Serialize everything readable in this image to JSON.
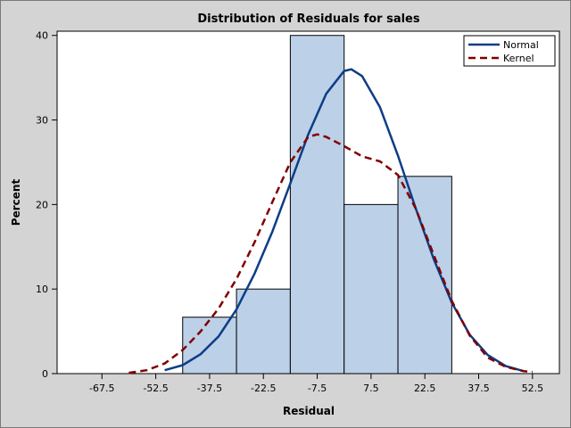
{
  "chart_data": {
    "type": "bar",
    "title": "Distribution of Residuals for sales",
    "xlabel": "Residual",
    "ylabel": "Percent",
    "xlim": [
      -80,
      60
    ],
    "ylim": [
      0,
      40.5
    ],
    "x_ticks": [
      "-67.5",
      "-52.5",
      "-37.5",
      "-22.5",
      "-7.5",
      "7.5",
      "22.5",
      "37.5",
      "52.5"
    ],
    "x_tick_values": [
      -67.5,
      -52.5,
      -37.5,
      -22.5,
      -7.5,
      7.5,
      22.5,
      37.5,
      52.5
    ],
    "y_ticks": [
      "0",
      "10",
      "20",
      "30",
      "40"
    ],
    "y_tick_values": [
      0,
      10,
      20,
      30,
      40
    ],
    "bins": [
      {
        "start": -45,
        "end": -30,
        "value": 6.67
      },
      {
        "start": -30,
        "end": -15,
        "value": 10
      },
      {
        "start": -15,
        "end": 0,
        "value": 40
      },
      {
        "start": 0,
        "end": 15,
        "value": 20
      },
      {
        "start": 15,
        "end": 30,
        "value": 23.33
      }
    ],
    "series": [
      {
        "name": "Normal",
        "style": "solid",
        "color": "#0d3d86",
        "x": [
          -50,
          -45,
          -40,
          -35,
          -30,
          -25,
          -20,
          -15,
          -10,
          -5,
          0,
          2,
          5,
          10,
          15,
          20,
          25,
          30,
          35,
          40,
          45,
          50
        ],
        "y": [
          0.4,
          1.0,
          2.3,
          4.4,
          7.6,
          11.8,
          16.8,
          22.5,
          28.3,
          33.1,
          35.8,
          36.0,
          35.2,
          31.5,
          25.8,
          19.5,
          13.5,
          8.4,
          4.6,
          2.2,
          0.9,
          0.3
        ]
      },
      {
        "name": "Kernel",
        "style": "dashed",
        "color": "#800000",
        "x": [
          -60,
          -55,
          -50,
          -45,
          -40,
          -35,
          -30,
          -25,
          -20,
          -15,
          -10,
          -7.5,
          -5,
          0,
          5,
          10,
          15,
          20,
          25,
          30,
          35,
          40,
          45,
          50,
          52.5
        ],
        "y": [
          0.1,
          0.4,
          1.2,
          2.8,
          5.0,
          7.7,
          11.2,
          15.5,
          20.3,
          25.0,
          28.0,
          28.3,
          28.0,
          26.9,
          25.7,
          25.1,
          23.5,
          19.5,
          14.0,
          8.6,
          4.5,
          1.9,
          0.8,
          0.3,
          0.2
        ]
      }
    ],
    "legend": {
      "placement": "top-right",
      "entries": [
        "Normal",
        "Kernel"
      ]
    },
    "colors": {
      "bar_fill": "#bcd0e8",
      "bar_stroke": "#000000",
      "background": "#d4d4d4",
      "plot_bg": "#ffffff"
    }
  }
}
